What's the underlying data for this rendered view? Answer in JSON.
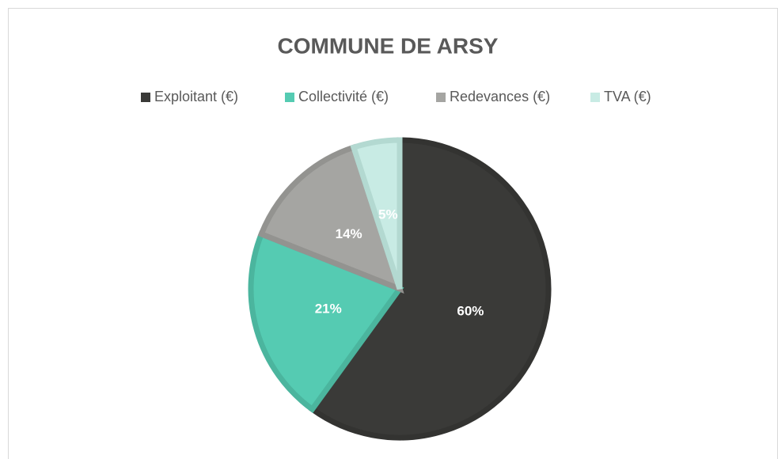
{
  "chart_data": {
    "type": "pie",
    "title": "COMMUNE DE ARSY",
    "categories": [
      "Exploitant (€)",
      "Collectivité (€)",
      "Redevances (€)",
      "TVA (€)"
    ],
    "values": [
      60,
      21,
      14,
      5
    ],
    "value_labels": [
      "60%",
      "21%",
      "14%",
      "5%"
    ],
    "colors": [
      "#3a3a38",
      "#55cbb2",
      "#a5a5a2",
      "#c8ebe4"
    ],
    "edgecolors": [
      "#333331",
      "#4bb59e",
      "#939390",
      "#b3d9d1"
    ],
    "legend": "top"
  }
}
